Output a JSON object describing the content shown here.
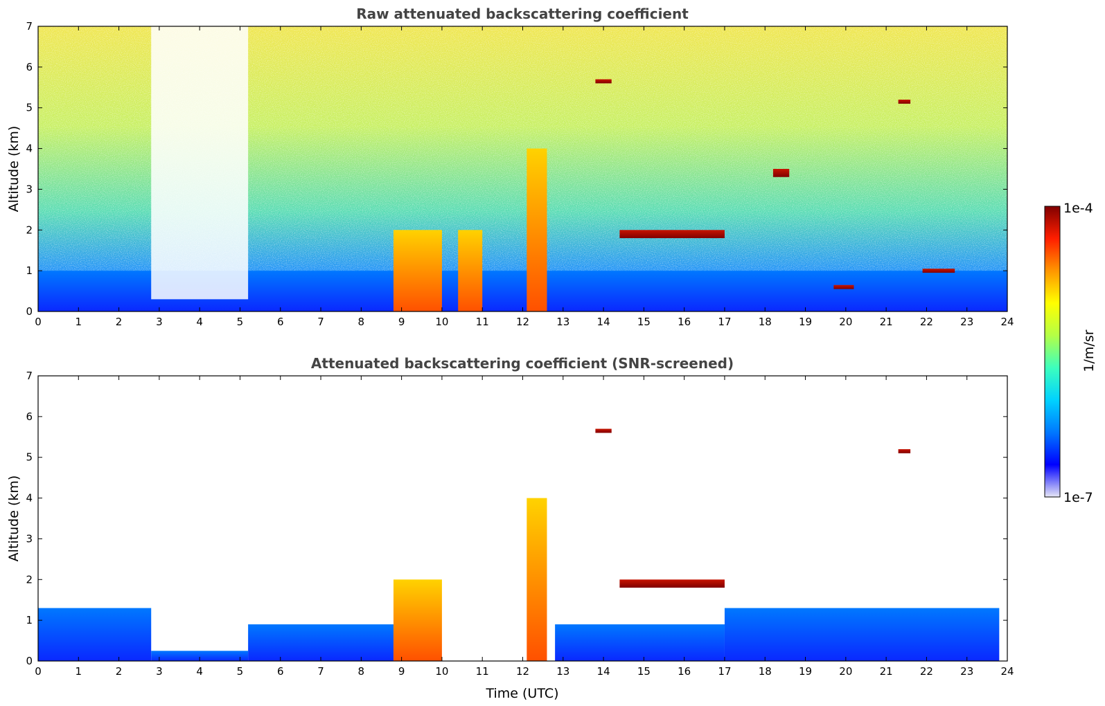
{
  "chart_data": [
    {
      "type": "heatmap",
      "title": "Raw attenuated backscattering coefficient",
      "xlabel": "",
      "ylabel": "Altitude (km)",
      "xlim": [
        0,
        24
      ],
      "ylim": [
        0,
        7
      ],
      "x_ticks": [
        "0",
        "1",
        "2",
        "3",
        "4",
        "5",
        "6",
        "7",
        "8",
        "9",
        "10",
        "11",
        "12",
        "13",
        "14",
        "15",
        "16",
        "17",
        "18",
        "19",
        "20",
        "21",
        "22",
        "23",
        "24"
      ],
      "y_ticks": [
        "0",
        "1",
        "2",
        "3",
        "4",
        "5",
        "6",
        "7"
      ],
      "features": [
        {
          "kind": "aerosol-layer",
          "x": [
            0,
            24
          ],
          "y": [
            0,
            1.0
          ]
        },
        {
          "kind": "noise-clear-column",
          "x": [
            2.8,
            5.2
          ],
          "y": [
            0.3,
            7
          ]
        },
        {
          "kind": "precip-column",
          "x": [
            8.8,
            10.0
          ],
          "y": [
            0,
            2.0
          ]
        },
        {
          "kind": "precip-column",
          "x": [
            10.4,
            11.0
          ],
          "y": [
            0,
            2.0
          ]
        },
        {
          "kind": "precip-column",
          "x": [
            12.1,
            12.6
          ],
          "y": [
            0,
            4.0
          ]
        },
        {
          "kind": "cloud-layer",
          "x": [
            14.4,
            17.0
          ],
          "y": [
            1.8,
            2.0
          ]
        },
        {
          "kind": "cloud-layer",
          "x": [
            13.8,
            14.2
          ],
          "y": [
            5.6,
            5.7
          ]
        },
        {
          "kind": "cloud-layer",
          "x": [
            21.3,
            21.6
          ],
          "y": [
            5.1,
            5.2
          ]
        },
        {
          "kind": "cloud-layer",
          "x": [
            18.2,
            18.6
          ],
          "y": [
            3.3,
            3.5
          ]
        },
        {
          "kind": "cloud-layer",
          "x": [
            19.7,
            20.2
          ],
          "y": [
            0.55,
            0.65
          ]
        },
        {
          "kind": "cloud-layer",
          "x": [
            21.9,
            22.7
          ],
          "y": [
            0.95,
            1.05
          ]
        }
      ]
    },
    {
      "type": "heatmap",
      "title": "Attenuated backscattering coefficient (SNR-screened)",
      "xlabel": "Time (UTC)",
      "ylabel": "Altitude (km)",
      "xlim": [
        0,
        24
      ],
      "ylim": [
        0,
        7
      ],
      "x_ticks": [
        "0",
        "1",
        "2",
        "3",
        "4",
        "5",
        "6",
        "7",
        "8",
        "9",
        "10",
        "11",
        "12",
        "13",
        "14",
        "15",
        "16",
        "17",
        "18",
        "19",
        "20",
        "21",
        "22",
        "23",
        "24"
      ],
      "y_ticks": [
        "0",
        "1",
        "2",
        "3",
        "4",
        "5",
        "6",
        "7"
      ],
      "features": [
        {
          "kind": "aerosol-layer",
          "x": [
            0,
            2.8
          ],
          "y": [
            0,
            1.3
          ]
        },
        {
          "kind": "aerosol-layer",
          "x": [
            2.8,
            5.2
          ],
          "y": [
            0,
            0.25
          ]
        },
        {
          "kind": "aerosol-layer",
          "x": [
            5.2,
            8.8
          ],
          "y": [
            0,
            0.9
          ]
        },
        {
          "kind": "aerosol-layer",
          "x": [
            12.8,
            17.0
          ],
          "y": [
            0,
            0.9
          ]
        },
        {
          "kind": "aerosol-layer",
          "x": [
            17.0,
            23.8
          ],
          "y": [
            0,
            1.3
          ]
        },
        {
          "kind": "precip-column",
          "x": [
            8.8,
            10.0
          ],
          "y": [
            0,
            2.0
          ]
        },
        {
          "kind": "precip-column",
          "x": [
            12.1,
            12.6
          ],
          "y": [
            0,
            4.0
          ]
        },
        {
          "kind": "cloud-layer",
          "x": [
            14.4,
            17.0
          ],
          "y": [
            1.8,
            2.0
          ]
        },
        {
          "kind": "cloud-layer",
          "x": [
            13.8,
            14.2
          ],
          "y": [
            5.6,
            5.7
          ]
        },
        {
          "kind": "cloud-layer",
          "x": [
            21.3,
            21.6
          ],
          "y": [
            5.1,
            5.2
          ]
        }
      ]
    }
  ],
  "colorbar": {
    "label": "1/m/sr",
    "max_label": "1e-4",
    "min_label": "1e-7",
    "scale": "log",
    "colormap": [
      "#e6e6f5",
      "#0000ff",
      "#0078ff",
      "#00d2ff",
      "#3cffbe",
      "#b4ff46",
      "#ffff00",
      "#ff9600",
      "#ff1e00",
      "#800000"
    ]
  }
}
